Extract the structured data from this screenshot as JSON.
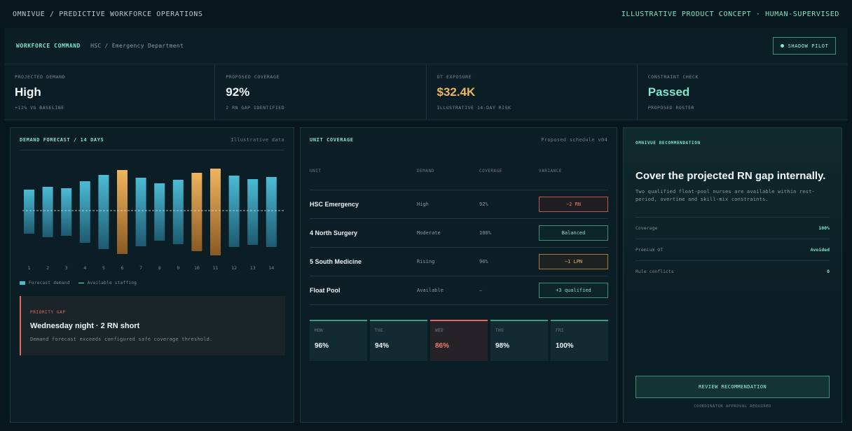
{
  "topbar": {
    "left": "OMNIVUE / PREDICTIVE WORKFORCE OPERATIONS",
    "right": "ILLUSTRATIVE PRODUCT CONCEPT · HUMAN-SUPERVISED"
  },
  "header": {
    "brand": "WORKFORCE COMMAND",
    "crumb": "HSC / Emergency Department",
    "pilot_label": "SHADOW PILOT"
  },
  "kpis": [
    {
      "label": "PROJECTED DEMAND",
      "value": "High",
      "sub": "+12% VS BASELINE",
      "color": "#f1f6f7"
    },
    {
      "label": "PROPOSED COVERAGE",
      "value": "92%",
      "sub": "2 RN GAP IDENTIFIED",
      "color": "#f1f6f7"
    },
    {
      "label": "OT EXPOSURE",
      "value": "$32.4K",
      "sub": "ILLUSTRATIVE 14-DAY RISK",
      "color": "#f0b45e"
    },
    {
      "label": "CONSTRAINT CHECK",
      "value": "Passed",
      "sub": "PROPOSED ROSTER",
      "color": "#7fe6c8"
    }
  ],
  "forecast": {
    "title": "DEMAND FORECAST / 14 DAYS",
    "note": "Illustrative data",
    "legend_demand": "Forecast demand",
    "legend_staffing": "Available staffing",
    "gap_tag": "PRIORITY GAP",
    "gap_title": "Wednesday night · 2 RN short",
    "gap_desc": "Demand forecast exceeds configured safe coverage threshold."
  },
  "chart_data": {
    "type": "bar",
    "categories": [
      "1",
      "2",
      "3",
      "4",
      "5",
      "6",
      "7",
      "8",
      "9",
      "10",
      "11",
      "12",
      "13",
      "14"
    ],
    "bars": [
      {
        "top": 30,
        "bottom": 93,
        "highlight": false
      },
      {
        "top": 26,
        "bottom": 98,
        "highlight": false
      },
      {
        "top": 28,
        "bottom": 96,
        "highlight": false
      },
      {
        "top": 18,
        "bottom": 106,
        "highlight": false
      },
      {
        "top": 9,
        "bottom": 115,
        "highlight": false
      },
      {
        "top": 2,
        "bottom": 122,
        "highlight": true
      },
      {
        "top": 13,
        "bottom": 111,
        "highlight": false
      },
      {
        "top": 21,
        "bottom": 103,
        "highlight": false
      },
      {
        "top": 16,
        "bottom": 108,
        "highlight": false
      },
      {
        "top": 6,
        "bottom": 118,
        "highlight": true
      },
      {
        "top": 0,
        "bottom": 124,
        "highlight": true
      },
      {
        "top": 10,
        "bottom": 112,
        "highlight": false
      },
      {
        "top": 15,
        "bottom": 109,
        "highlight": false
      },
      {
        "top": 12,
        "bottom": 112,
        "highlight": false
      }
    ],
    "staffing_level": 60,
    "ylim": [
      0,
      124
    ],
    "colors": {
      "normal": "#4cbbd6",
      "normal_dark": "#1d5a70",
      "highlight": "#f0b45e",
      "highlight_dark": "#8a5a25",
      "staffing": "#cfe3e6"
    }
  },
  "coverage": {
    "title": "UNIT COVERAGE",
    "note": "Proposed schedule v04",
    "headers": [
      "UNIT",
      "DEMAND",
      "COVERAGE",
      "VARIANCE"
    ],
    "rows": [
      {
        "unit": "HSC Emergency",
        "demand": "High",
        "coverage": "92%",
        "variance": "−2 RN",
        "tone": "bad"
      },
      {
        "unit": "4 North Surgery",
        "demand": "Moderate",
        "coverage": "100%",
        "variance": "Balanced",
        "tone": "good"
      },
      {
        "unit": "5 South Medicine",
        "demand": "Rising",
        "coverage": "96%",
        "variance": "−1 LPN",
        "tone": "warn"
      },
      {
        "unit": "Float Pool",
        "demand": "Available",
        "coverage": "—",
        "variance": "+3 qualified",
        "tone": "good"
      }
    ],
    "days": [
      {
        "name": "MON",
        "value": "96%",
        "alert": false
      },
      {
        "name": "TUE",
        "value": "94%",
        "alert": false
      },
      {
        "name": "WED",
        "value": "86%",
        "alert": true
      },
      {
        "name": "THU",
        "value": "98%",
        "alert": false
      },
      {
        "name": "FRI",
        "value": "100%",
        "alert": false
      }
    ]
  },
  "recommendation": {
    "tag": "OMNIVUE RECOMMENDATION",
    "headline": "Cover the projected RN gap internally.",
    "desc": "Two qualified float-pool nurses are available within rest-period, overtime and skill-mix constraints.",
    "rows": [
      {
        "k": "Coverage",
        "v": "100%"
      },
      {
        "k": "Premium OT",
        "v": "Avoided"
      },
      {
        "k": "Rule conflicts",
        "v": "0"
      }
    ],
    "button": "REVIEW RECOMMENDATION",
    "approval": "COORDINATOR APPROVAL REQUIRED"
  }
}
